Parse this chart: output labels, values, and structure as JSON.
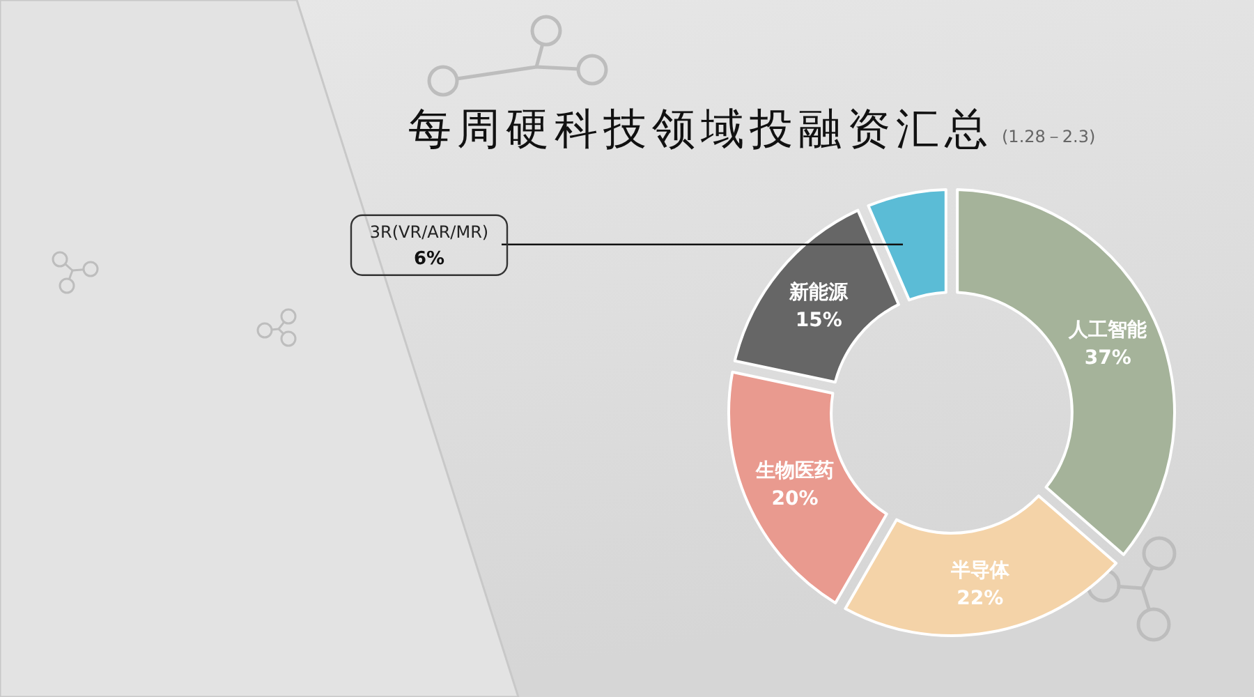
{
  "chart_data": {
    "type": "donut",
    "title": "每周硬科技领域投融资汇总",
    "subtitle": "(1.28－2.3)",
    "categories": [
      "人工智能",
      "半导体",
      "生物医药",
      "新能源",
      "3R(VR/AR/MR)"
    ],
    "values": [
      37,
      22,
      20,
      15,
      6
    ],
    "colors": [
      "#a5b39a",
      "#f4d3a8",
      "#e99a8f",
      "#666666",
      "#5bbcd6"
    ],
    "value_labels": [
      "37%",
      "22%",
      "20%",
      "15%",
      "6%"
    ]
  }
}
